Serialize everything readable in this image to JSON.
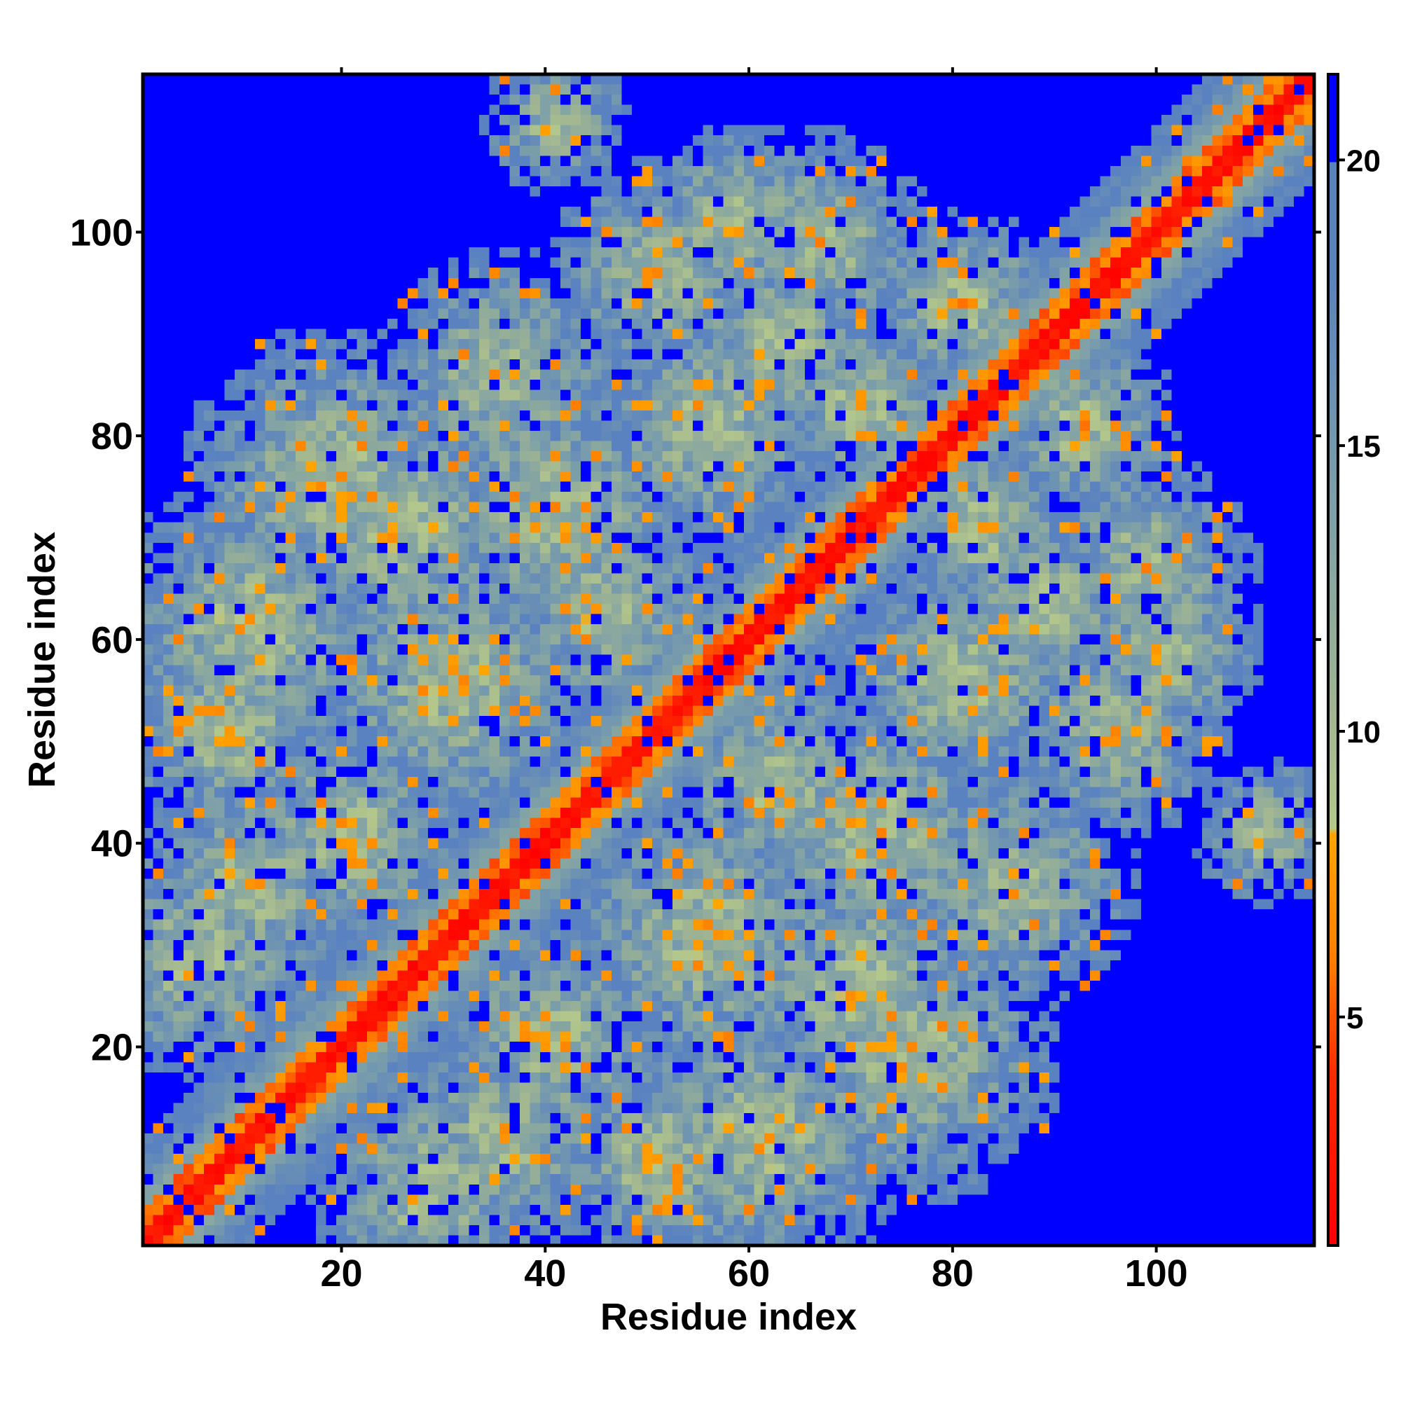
{
  "chart_data": {
    "type": "heatmap",
    "title": "",
    "xlabel": "Residue index",
    "ylabel": "Residue index",
    "n_residues": 115,
    "xlim": [
      1,
      115
    ],
    "ylim": [
      1,
      115
    ],
    "x_ticks": [
      20,
      40,
      60,
      80,
      100
    ],
    "y_ticks": [
      20,
      40,
      60,
      80,
      100
    ],
    "x_tick_labels": [
      "20",
      "40",
      "60",
      "80",
      "100"
    ],
    "y_tick_labels": [
      "20",
      "40",
      "60",
      "80",
      "100"
    ],
    "colorbar": {
      "range": [
        1,
        21.5
      ],
      "ticks": [
        5,
        10,
        15,
        20
      ],
      "tick_labels": [
        "5",
        "10",
        "15",
        "20"
      ],
      "stops": [
        {
          "value": 1,
          "color": "#ff0000"
        },
        {
          "value": 4,
          "color": "#ff2a00"
        },
        {
          "value": 6,
          "color": "#ff7f00"
        },
        {
          "value": 8.2,
          "color": "#ffa500"
        },
        {
          "value": 8.3,
          "color": "#b4c88c"
        },
        {
          "value": 10.5,
          "color": "#9fb492"
        },
        {
          "value": 14,
          "color": "#7da0a8"
        },
        {
          "value": 18,
          "color": "#5a82c0"
        },
        {
          "value": 19.99,
          "color": "#5a82c0"
        },
        {
          "value": 20,
          "color": "#0000ff"
        }
      ]
    },
    "background_value": 21.5,
    "description_of_data": "Symmetric residue-residue distance map; red diagonal (distance < 4), orange near-diagonal band, cluster contacts at e.g. (17,20),(59,90),(42,44),(60,89) and off-diagonal patches; blue = beyond cutoff."
  }
}
